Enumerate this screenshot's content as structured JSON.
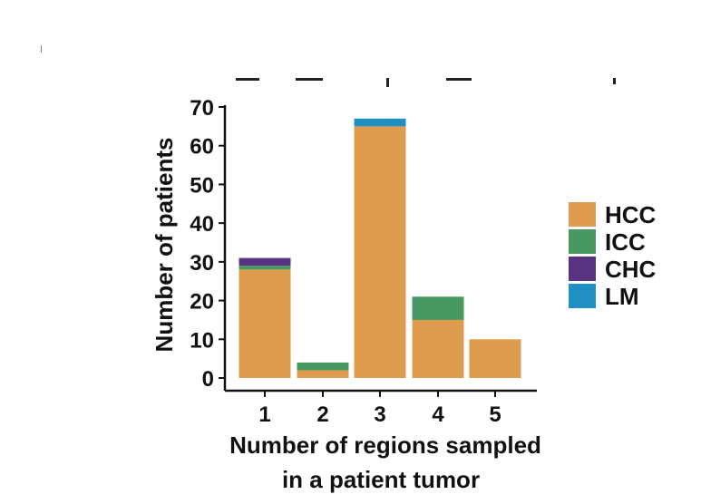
{
  "chart_data": {
    "type": "bar",
    "stacked": true,
    "title": "",
    "xlabel": [
      "Number of regions sampled",
      "in a patient tumor"
    ],
    "ylabel": "Number of patients",
    "categories": [
      "1",
      "2",
      "3",
      "4",
      "5"
    ],
    "ylim": [
      0,
      70
    ],
    "yticks": [
      0,
      10,
      20,
      30,
      40,
      50,
      60,
      70
    ],
    "series": [
      {
        "name": "HCC",
        "color": "#E09C4E",
        "values": [
          28,
          2,
          65,
          15,
          10
        ]
      },
      {
        "name": "ICC",
        "color": "#479961",
        "values": [
          1,
          2,
          0,
          6,
          0
        ]
      },
      {
        "name": "CHC",
        "color": "#5A3282",
        "values": [
          2,
          0,
          0,
          0,
          0
        ]
      },
      {
        "name": "LM",
        "color": "#1F8FC4",
        "values": [
          0,
          0,
          2,
          0,
          0
        ]
      }
    ],
    "legend": {
      "position": "right",
      "entries": [
        "HCC",
        "ICC",
        "CHC",
        "LM"
      ]
    },
    "grid": false
  }
}
